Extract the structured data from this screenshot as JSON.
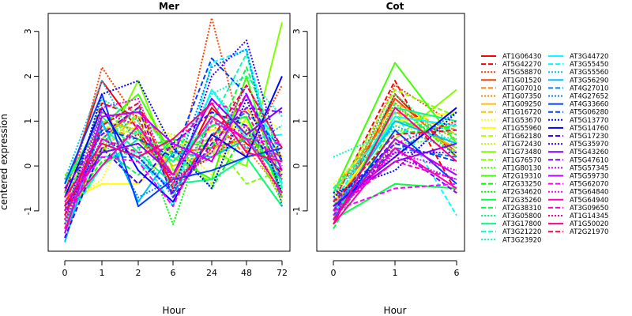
{
  "chart_data": [
    {
      "type": "line",
      "title": "Mer",
      "xlabel": "Hour",
      "ylabel": "centered expression",
      "x_ticks": [
        "0",
        "1",
        "2",
        "6",
        "24",
        "48",
        "72"
      ],
      "y_ticks": [
        "-1",
        "0",
        "1",
        "2",
        "3"
      ],
      "ylim": [
        -1.9,
        3.4
      ],
      "series": [
        {
          "name": "AT1G06430",
          "values": [
            -0.6,
            1.9,
            0.8,
            -0.4,
            1.3,
            0.5,
            -0.1
          ]
        },
        {
          "name": "AT5G42270",
          "values": [
            -0.9,
            1.4,
            1.1,
            -0.6,
            0.4,
            1.6,
            -0.3
          ]
        },
        {
          "name": "AT5G58870",
          "values": [
            -1.0,
            2.2,
            1.0,
            -0.5,
            3.3,
            0.3,
            1.8
          ]
        },
        {
          "name": "AT1G01520",
          "values": [
            -1.5,
            0.6,
            1.3,
            0.3,
            0.4,
            0.6,
            0.2
          ]
        },
        {
          "name": "AT1G07010",
          "values": [
            -1.2,
            0.9,
            0.6,
            -0.2,
            1.1,
            0.2,
            -0.9
          ]
        },
        {
          "name": "AT1G07350",
          "values": [
            -0.8,
            0.8,
            1.0,
            -0.3,
            0.9,
            0.4,
            -0.6
          ]
        },
        {
          "name": "AT1G09250",
          "values": [
            -1.4,
            1.0,
            0.8,
            0.0,
            0.3,
            1.3,
            0.2
          ]
        },
        {
          "name": "AT1G16720",
          "values": [
            -0.6,
            0.3,
            1.2,
            -0.2,
            0.7,
            0.9,
            -0.8
          ]
        },
        {
          "name": "AT1G53670",
          "values": [
            -0.9,
            -0.3,
            1.3,
            0.6,
            -0.2,
            1.3,
            0.8
          ]
        },
        {
          "name": "AT1G55960",
          "values": [
            -0.8,
            -0.4,
            -0.4,
            0.4,
            0.8,
            1.0,
            -0.3
          ]
        },
        {
          "name": "AT1G62180",
          "values": [
            -0.7,
            0.9,
            0.7,
            0.4,
            -0.4,
            1.1,
            -0.2
          ]
        },
        {
          "name": "AT1G72430",
          "values": [
            -1.1,
            0.5,
            0.9,
            0.7,
            0.3,
            0.6,
            -0.5
          ]
        },
        {
          "name": "AT1G73480",
          "values": [
            -0.2,
            0.3,
            1.9,
            -0.1,
            0.3,
            0.0,
            3.2
          ]
        },
        {
          "name": "AT1G76570",
          "values": [
            -1.3,
            0.6,
            1.1,
            0.4,
            0.6,
            -0.4,
            -0.1
          ]
        },
        {
          "name": "AT1G80130",
          "values": [
            -0.5,
            1.2,
            0.7,
            -0.2,
            0.2,
            0.7,
            -0.8
          ]
        },
        {
          "name": "AT2G19310",
          "values": [
            -0.3,
            0.9,
            1.6,
            0.2,
            -0.3,
            2.0,
            -0.7
          ]
        },
        {
          "name": "AT2G33250",
          "values": [
            -1.0,
            0.1,
            0.4,
            0.6,
            -0.5,
            0.8,
            -0.4
          ]
        },
        {
          "name": "AT2G34620",
          "values": [
            -1.4,
            0.3,
            0.8,
            -1.3,
            1.2,
            0.9,
            -0.5
          ]
        },
        {
          "name": "AT2G35260",
          "values": [
            -1.2,
            0.0,
            0.6,
            0.1,
            0.9,
            1.1,
            -0.6
          ]
        },
        {
          "name": "AT2G38310",
          "values": [
            -0.9,
            0.4,
            -0.2,
            0.6,
            0.4,
            2.2,
            0.1
          ]
        },
        {
          "name": "AT3G05800",
          "values": [
            -1.1,
            1.5,
            1.0,
            -0.6,
            1.7,
            0.8,
            0.0
          ]
        },
        {
          "name": "AT3G17800",
          "values": [
            -0.4,
            1.1,
            0.3,
            -0.4,
            -0.3,
            0.2,
            -0.9
          ]
        },
        {
          "name": "AT3G21220",
          "values": [
            -1.3,
            0.0,
            0.8,
            0.1,
            1.0,
            2.5,
            -0.5
          ]
        },
        {
          "name": "AT3G23920",
          "values": [
            -0.6,
            0.5,
            1.3,
            0.2,
            1.6,
            2.0,
            1.1
          ]
        },
        {
          "name": "AT3G44720",
          "values": [
            -1.5,
            0.9,
            0.1,
            -0.5,
            1.7,
            0.6,
            0.7
          ]
        },
        {
          "name": "AT3G55450",
          "values": [
            -0.9,
            0.2,
            0.3,
            -0.9,
            2.3,
            2.6,
            -0.4
          ]
        },
        {
          "name": "AT3G55560",
          "values": [
            -0.3,
            1.9,
            0.4,
            -0.7,
            1.1,
            0.4,
            0.9
          ]
        },
        {
          "name": "AT3G56290",
          "values": [
            -1.7,
            1.0,
            -0.8,
            0.3,
            0.2,
            0.6,
            -0.3
          ]
        },
        {
          "name": "AT4G27010",
          "values": [
            -0.8,
            0.2,
            0.2,
            -0.6,
            0.7,
            1.2,
            0.4
          ]
        },
        {
          "name": "AT4G27652",
          "values": [
            -1.3,
            0.8,
            -0.7,
            -0.3,
            2.2,
            2.6,
            -0.9
          ]
        },
        {
          "name": "AT4G33660",
          "values": [
            -0.4,
            1.6,
            -0.9,
            -0.3,
            -0.1,
            0.2,
            0.4
          ]
        },
        {
          "name": "AT5G06280",
          "values": [
            -1.0,
            0.8,
            0.6,
            0.2,
            2.4,
            1.6,
            0.1
          ]
        },
        {
          "name": "AT5G13770",
          "values": [
            -1.2,
            1.6,
            1.9,
            0.4,
            -0.5,
            1.5,
            -0.6
          ]
        },
        {
          "name": "AT5G14760",
          "values": [
            -0.7,
            1.3,
            -0.1,
            -0.8,
            0.7,
            0.2,
            2.0
          ]
        },
        {
          "name": "AT5G17230",
          "values": [
            -1.6,
            0.4,
            -0.4,
            0.5,
            1.2,
            0.9,
            -0.2
          ]
        },
        {
          "name": "AT5G35970",
          "values": [
            -1.1,
            0.6,
            0.2,
            -0.6,
            2.0,
            2.8,
            0.1
          ]
        },
        {
          "name": "AT5G43260",
          "values": [
            -0.9,
            0.3,
            0.5,
            -0.2,
            1.5,
            0.7,
            1.3
          ]
        },
        {
          "name": "AT5G47610",
          "values": [
            -0.5,
            0.7,
            1.3,
            -0.7,
            0.5,
            1.3,
            1.2
          ]
        },
        {
          "name": "AT5G57345",
          "values": [
            -1.3,
            1.2,
            0.9,
            -0.3,
            0.3,
            1.8,
            0.4
          ]
        },
        {
          "name": "AT5G59730",
          "values": [
            -1.5,
            1.1,
            1.2,
            0.5,
            0.1,
            1.6,
            -0.1
          ]
        },
        {
          "name": "AT5G62070",
          "values": [
            -0.8,
            0.2,
            0.1,
            -0.9,
            1.0,
            0.6,
            0.5
          ]
        },
        {
          "name": "AT5G64840",
          "values": [
            -1.2,
            1.3,
            1.5,
            -0.4,
            0.4,
            0.9,
            0.0
          ]
        },
        {
          "name": "AT5G64940",
          "values": [
            -1.0,
            0.0,
            0.9,
            -0.2,
            1.1,
            0.6,
            -0.6
          ]
        },
        {
          "name": "AT3G09650",
          "values": [
            -1.4,
            0.6,
            0.3,
            0.4,
            1.4,
            1.2,
            -0.3
          ]
        },
        {
          "name": "AT1G14345",
          "values": [
            -0.9,
            0.4,
            0.7,
            -0.3,
            0.2,
            0.8,
            -0.7
          ]
        },
        {
          "name": "AT1G50020",
          "values": [
            -0.7,
            0.5,
            0.2,
            0.6,
            1.4,
            0.3,
            0.1
          ]
        },
        {
          "name": "AT2G21970",
          "values": [
            -1.1,
            0.9,
            1.4,
            -0.5,
            0.6,
            1.8,
            0.4
          ]
        }
      ]
    },
    {
      "type": "line",
      "title": "Cot",
      "xlabel": "Hour",
      "ylabel": "",
      "x_ticks": [
        "0",
        "1",
        "6"
      ],
      "y_ticks": [
        "-1",
        "0",
        "1",
        "2",
        "3"
      ],
      "ylim": [
        -1.9,
        3.4
      ],
      "series": [
        {
          "name": "AT1G06430",
          "values": [
            -1.2,
            1.6,
            0.2
          ]
        },
        {
          "name": "AT5G42270",
          "values": [
            -0.8,
            1.9,
            -0.6
          ]
        },
        {
          "name": "AT5G58870",
          "values": [
            -1.1,
            1.8,
            0.9
          ]
        },
        {
          "name": "AT1G01520",
          "values": [
            -1.0,
            1.5,
            0.3
          ]
        },
        {
          "name": "AT1G07010",
          "values": [
            -0.5,
            1.2,
            0.8
          ]
        },
        {
          "name": "AT1G07350",
          "values": [
            -0.7,
            1.3,
            0.6
          ]
        },
        {
          "name": "AT1G09250",
          "values": [
            -0.9,
            1.1,
            0.4
          ]
        },
        {
          "name": "AT1G16720",
          "values": [
            -0.6,
            1.4,
            0.7
          ]
        },
        {
          "name": "AT1G53670",
          "values": [
            -0.4,
            0.9,
            1.0
          ]
        },
        {
          "name": "AT1G55960",
          "values": [
            -0.8,
            1.0,
            1.2
          ]
        },
        {
          "name": "AT1G62180",
          "values": [
            -1.2,
            1.2,
            0.3
          ]
        },
        {
          "name": "AT1G72430",
          "values": [
            -0.9,
            0.8,
            0.9
          ]
        },
        {
          "name": "AT1G73480",
          "values": [
            -1.1,
            0.6,
            1.7
          ]
        },
        {
          "name": "AT1G76570",
          "values": [
            -0.7,
            1.7,
            1.1
          ]
        },
        {
          "name": "AT1G80130",
          "values": [
            -1.0,
            0.5,
            0.6
          ]
        },
        {
          "name": "AT2G19310",
          "values": [
            -0.6,
            2.3,
            0.5
          ]
        },
        {
          "name": "AT2G33250",
          "values": [
            -0.8,
            0.7,
            0.9
          ]
        },
        {
          "name": "AT2G34620",
          "values": [
            -1.3,
            1.4,
            0.2
          ]
        },
        {
          "name": "AT2G35260",
          "values": [
            -1.2,
            -0.4,
            -0.5
          ]
        },
        {
          "name": "AT2G38310",
          "values": [
            -1.4,
            1.0,
            0.7
          ]
        },
        {
          "name": "AT3G05800",
          "values": [
            -0.9,
            1.6,
            0.4
          ]
        },
        {
          "name": "AT3G17800",
          "values": [
            -1.2,
            1.3,
            1.0
          ]
        },
        {
          "name": "AT3G21220",
          "values": [
            -0.5,
            1.0,
            0.8
          ]
        },
        {
          "name": "AT3G23920",
          "values": [
            0.2,
            0.8,
            0.6
          ]
        },
        {
          "name": "AT3G44720",
          "values": [
            -1.1,
            1.1,
            0.9
          ]
        },
        {
          "name": "AT3G55450",
          "values": [
            -0.8,
            1.2,
            -1.1
          ]
        },
        {
          "name": "AT3G55560",
          "values": [
            -0.6,
            0.9,
            0.3
          ]
        },
        {
          "name": "AT3G56290",
          "values": [
            -1.0,
            1.0,
            0.5
          ]
        },
        {
          "name": "AT4G27010",
          "values": [
            -0.9,
            0.4,
            0.2
          ]
        },
        {
          "name": "AT4G27652",
          "values": [
            -0.7,
            0.3,
            1.2
          ]
        },
        {
          "name": "AT4G33660",
          "values": [
            -1.2,
            0.8,
            -0.4
          ]
        },
        {
          "name": "AT5G06280",
          "values": [
            -0.8,
            0.5,
            0.1
          ]
        },
        {
          "name": "AT5G13770",
          "values": [
            -0.6,
            -0.1,
            1.2
          ]
        },
        {
          "name": "AT5G14760",
          "values": [
            -0.9,
            0.2,
            1.3
          ]
        },
        {
          "name": "AT5G17230",
          "values": [
            -1.0,
            0.6,
            -0.2
          ]
        },
        {
          "name": "AT5G35970",
          "values": [
            -0.7,
            0.3,
            0.3
          ]
        },
        {
          "name": "AT5G43260",
          "values": [
            -0.9,
            0.1,
            0.5
          ]
        },
        {
          "name": "AT5G47610",
          "values": [
            -1.1,
            0.4,
            -0.6
          ]
        },
        {
          "name": "AT5G57345",
          "values": [
            -0.8,
            0.2,
            -0.3
          ]
        },
        {
          "name": "AT5G59730",
          "values": [
            -1.2,
            0.6,
            -0.2
          ]
        },
        {
          "name": "AT5G62070",
          "values": [
            -1.0,
            -0.5,
            -0.4
          ]
        },
        {
          "name": "AT5G64840",
          "values": [
            -1.1,
            0.3,
            -0.1
          ]
        },
        {
          "name": "AT5G64940",
          "values": [
            -1.3,
            0.4,
            -0.5
          ]
        },
        {
          "name": "AT3G09650",
          "values": [
            -1.0,
            0.1,
            -0.3
          ]
        },
        {
          "name": "AT1G14345",
          "values": [
            -1.2,
            0.5,
            1.0
          ]
        },
        {
          "name": "AT1G50020",
          "values": [
            -1.3,
            1.3,
            0.1
          ]
        },
        {
          "name": "AT2G21970",
          "values": [
            -0.8,
            0.7,
            0.8
          ]
        }
      ]
    }
  ],
  "colors": [
    "#ff0000",
    "#ff4000",
    "#ff8000",
    "#ffbf00",
    "#ffff00",
    "#bfff00",
    "#80ff00",
    "#40ff00",
    "#00ff00",
    "#00ff40",
    "#00ff80",
    "#00ffbf",
    "#00ffff",
    "#00bfff",
    "#0080ff",
    "#0040ff",
    "#0000ff",
    "#4000ff",
    "#8000ff",
    "#bf00ff",
    "#ff00ff",
    "#ff00bf",
    "#ff0080",
    "#ff0040"
  ],
  "dash_styles": [
    "solid",
    "dashed",
    "dotted"
  ],
  "legend_placement": "right"
}
